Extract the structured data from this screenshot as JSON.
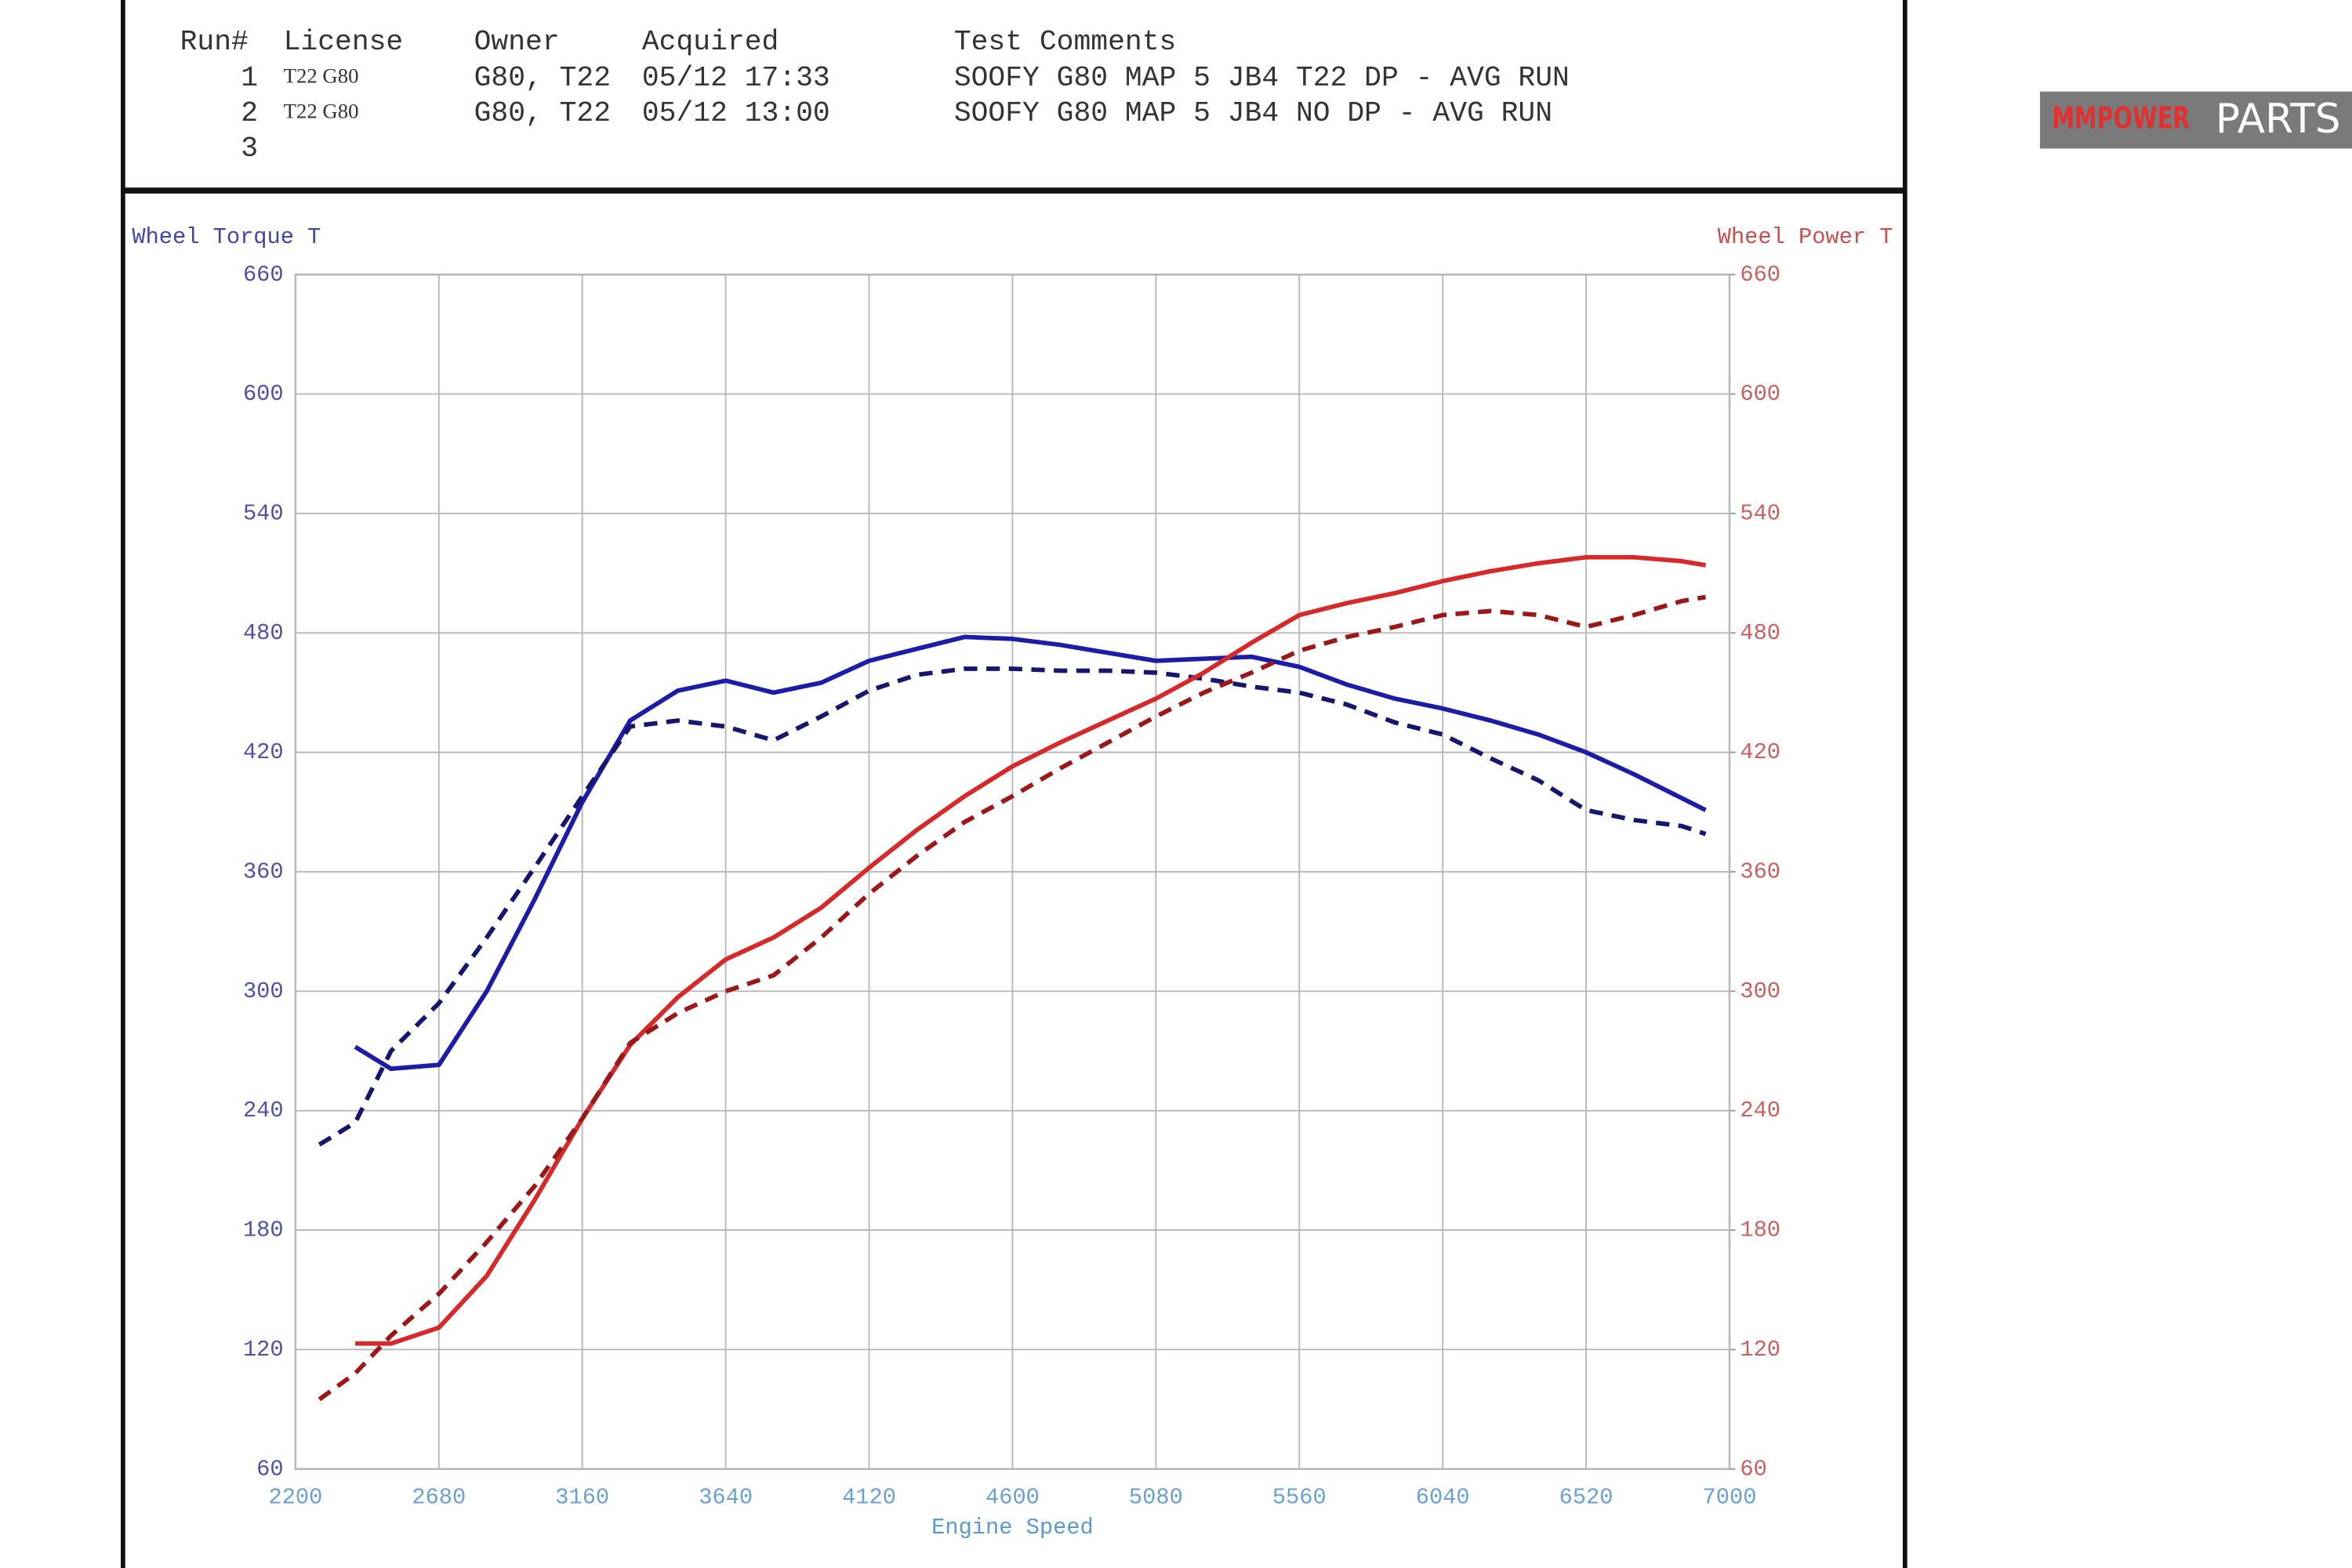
{
  "run_table": {
    "columns": [
      "Run#",
      "License",
      "Owner",
      "Acquired",
      "Test Comments"
    ],
    "rows": [
      [
        "1",
        "T22 G80",
        "G80, T22",
        "05/12 17:33",
        "SOOFY G80 MAP 5 JB4 T22 DP - AVG RUN"
      ],
      [
        "2",
        "T22 G80",
        "G80, T22",
        "05/12 13:00",
        "SOOFY G80 MAP 5 JB4 NO DP - AVG RUN"
      ],
      [
        "3"
      ]
    ]
  },
  "logo": {
    "brand": "MMPOWER",
    "suffix": "PARTS"
  },
  "chart_data": {
    "type": "line",
    "y_label": "Wheel Torque T",
    "y2_label": "Wheel Power T",
    "x_label": "Engine Speed",
    "x": [
      2280,
      2400,
      2520,
      2680,
      2840,
      3000,
      3160,
      3320,
      3480,
      3640,
      3800,
      3960,
      4120,
      4280,
      4440,
      4600,
      4760,
      4920,
      5080,
      5240,
      5400,
      5560,
      5720,
      5880,
      6040,
      6200,
      6360,
      6520,
      6680,
      6840,
      6920
    ],
    "xlim": [
      2200,
      7000
    ],
    "xticks": [
      2200,
      2680,
      3160,
      3640,
      4120,
      4600,
      5080,
      5560,
      6040,
      6520,
      7000
    ],
    "ylim": [
      60,
      660
    ],
    "yticks": [
      60,
      120,
      180,
      240,
      300,
      360,
      420,
      480,
      540,
      600,
      660
    ],
    "y2lim": [
      60,
      660
    ],
    "y2ticks": [
      60,
      120,
      180,
      240,
      300,
      360,
      420,
      480,
      540,
      600,
      660
    ],
    "grid": true,
    "series": [
      {
        "color": "#1c1ca6",
        "dash": false,
        "axis": "y",
        "values": [
          null,
          272,
          261,
          263,
          300,
          346,
          395,
          436,
          451,
          456,
          450,
          455,
          466,
          472,
          478,
          477,
          474,
          470,
          466,
          467,
          468,
          463,
          454,
          447,
          442,
          436,
          429,
          420,
          409,
          397,
          391
        ]
      },
      {
        "color": "#16166e",
        "dash": true,
        "axis": "y",
        "values": [
          223,
          234,
          270,
          294,
          327,
          362,
          398,
          433,
          436,
          433,
          426,
          438,
          451,
          459,
          462,
          462,
          461,
          461,
          460,
          457,
          453,
          450,
          444,
          435,
          429,
          417,
          406,
          391,
          386,
          383,
          379
        ]
      },
      {
        "color": "#d62a2a",
        "dash": false,
        "axis": "y2",
        "values": [
          null,
          123,
          123,
          131,
          157,
          195,
          236,
          273,
          297,
          316,
          327,
          342,
          362,
          381,
          398,
          413,
          425,
          436,
          447,
          460,
          475,
          489,
          495,
          500,
          506,
          511,
          515,
          518,
          518,
          516,
          514
        ]
      },
      {
        "color": "#9a1818",
        "dash": true,
        "axis": "y2",
        "values": [
          95,
          108,
          127,
          148,
          174,
          202,
          236,
          274,
          289,
          300,
          308,
          327,
          349,
          368,
          385,
          398,
          412,
          425,
          438,
          450,
          460,
          471,
          478,
          483,
          489,
          491,
          489,
          483,
          489,
          496,
          498
        ]
      }
    ]
  }
}
